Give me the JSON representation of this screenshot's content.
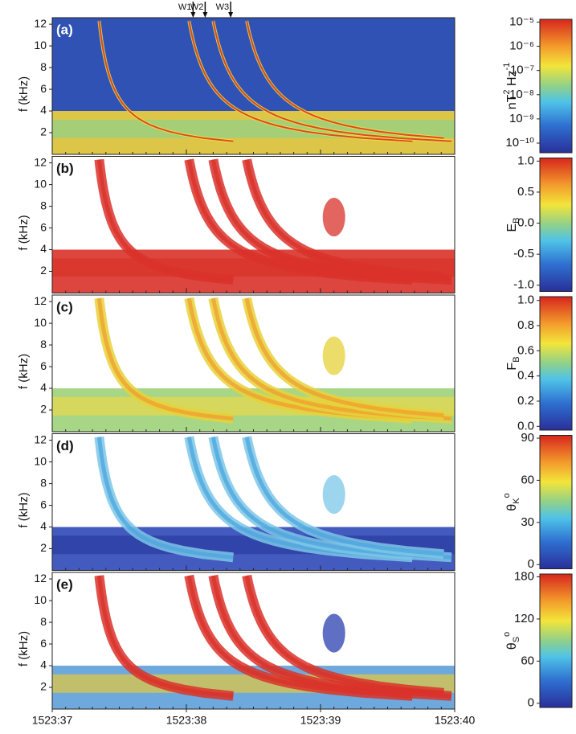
{
  "chart_data": [
    {
      "type": "spectrogram",
      "panel_label": "(a)",
      "ylabel": "f (kHz)",
      "ylim": [
        0,
        12.6
      ],
      "yticks": [
        2,
        4,
        6,
        8,
        10,
        12
      ],
      "xlim": [
        37,
        40
      ],
      "annotations": [
        {
          "text": "W1",
          "x": 38.05
        },
        {
          "text": "W2",
          "x": 38.14
        },
        {
          "text": "W3",
          "x": 38.33
        }
      ],
      "colorbar": {
        "label": "nT",
        "label_sup": "2",
        "label_rest": " Hz",
        "label_sup2": "-1",
        "log": true,
        "lim": [
          4e-11,
          1.3e-05
        ],
        "ticks": [
          {
            "value": 1e-10,
            "label": "10⁻¹⁰"
          },
          {
            "value": 1e-09,
            "label": "10⁻⁹"
          },
          {
            "value": 1e-08,
            "label": "10⁻⁸"
          },
          {
            "value": 1e-07,
            "label": "10⁻⁷"
          },
          {
            "value": 1e-06,
            "label": "10⁻⁶"
          },
          {
            "value": 1e-05,
            "label": "10⁻⁵"
          }
        ]
      }
    },
    {
      "type": "spectrogram",
      "panel_label": "(b)",
      "ylabel": "f (kHz)",
      "ylim": [
        0,
        12.6
      ],
      "yticks": [
        2,
        4,
        6,
        8,
        10,
        12
      ],
      "xlim": [
        37,
        40
      ],
      "colorbar": {
        "label": "E",
        "label_sub": "B",
        "log": false,
        "lim": [
          -1.1,
          1.05
        ],
        "ticks": [
          {
            "value": -1,
            "label": "-1.0"
          },
          {
            "value": -0.5,
            "label": "-0.5"
          },
          {
            "value": 0,
            "label": "0.0"
          },
          {
            "value": 0.5,
            "label": "0.5"
          },
          {
            "value": 1,
            "label": "1.0"
          }
        ]
      }
    },
    {
      "type": "spectrogram",
      "panel_label": "(c)",
      "ylabel": "f (kHz)",
      "ylim": [
        0,
        12.6
      ],
      "yticks": [
        2,
        4,
        6,
        8,
        10,
        12
      ],
      "xlim": [
        37,
        40
      ],
      "colorbar": {
        "label": "F",
        "label_sub": "B",
        "log": false,
        "lim": [
          -0.03,
          1.03
        ],
        "ticks": [
          {
            "value": 0,
            "label": "0.0"
          },
          {
            "value": 0.2,
            "label": "0.2"
          },
          {
            "value": 0.4,
            "label": "0.4"
          },
          {
            "value": 0.6,
            "label": "0.6"
          },
          {
            "value": 0.8,
            "label": "0.8"
          },
          {
            "value": 1,
            "label": "1.0"
          }
        ]
      }
    },
    {
      "type": "spectrogram",
      "panel_label": "(d)",
      "ylabel": "f (kHz)",
      "ylim": [
        0,
        12.6
      ],
      "yticks": [
        2,
        4,
        6,
        8,
        10,
        12
      ],
      "xlim": [
        37,
        40
      ],
      "colorbar": {
        "label": "θ",
        "label_sub": "K",
        "label_sup": "o",
        "log": false,
        "lim": [
          -3,
          92
        ],
        "ticks": [
          0,
          30,
          60,
          90
        ]
      }
    },
    {
      "type": "spectrogram",
      "panel_label": "(e)",
      "ylabel": "f (kHz)",
      "ylim": [
        0,
        12.6
      ],
      "yticks": [
        2,
        4,
        6,
        8,
        10,
        12
      ],
      "xlim": [
        37,
        40
      ],
      "xticks": [
        {
          "value": 37,
          "label": "1523:37"
        },
        {
          "value": 38,
          "label": "1523:38"
        },
        {
          "value": 39,
          "label": "1523:39"
        },
        {
          "value": 40,
          "label": "1523:40"
        }
      ],
      "colorbar": {
        "label": "θ",
        "label_sub": "S",
        "label_sup": "o",
        "log": false,
        "lim": [
          -6,
          184
        ],
        "ticks": [
          0,
          60,
          120,
          180
        ]
      }
    }
  ]
}
